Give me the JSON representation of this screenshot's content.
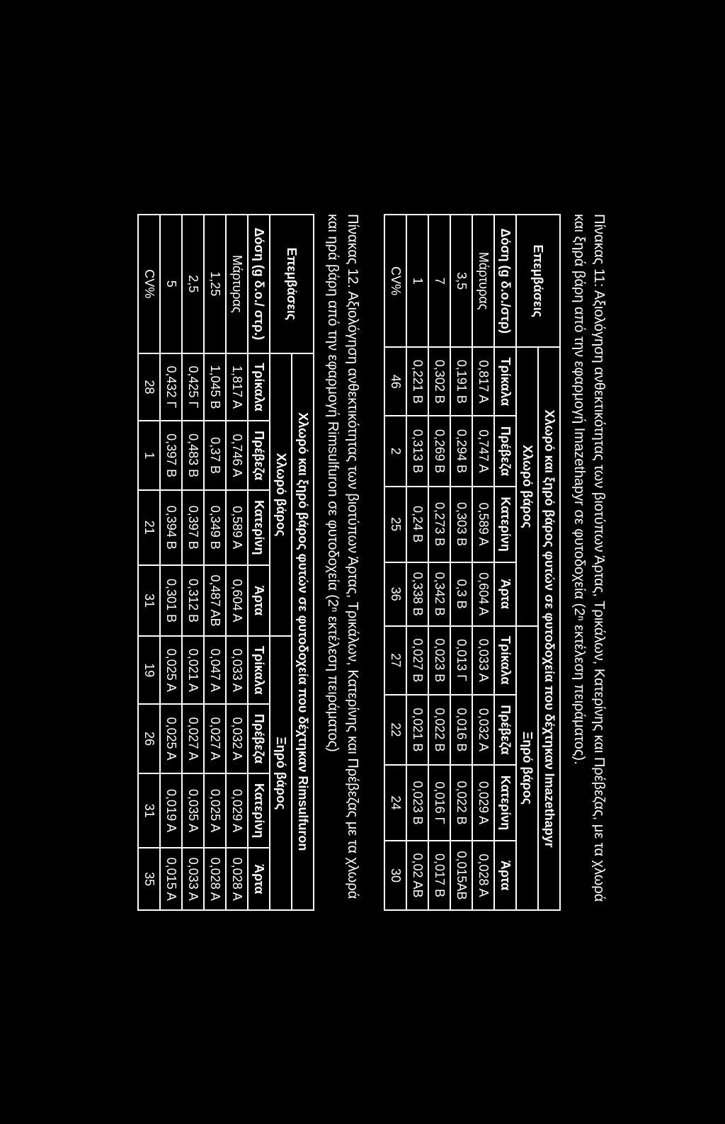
{
  "caption1": "Πίνακας 11: Αξιολόγηση ανθεκτικότητας των βιοτύπων Άρτας, Τρικάλων, Κατερίνης και Πρέβεζας, με τα χλωρά και ξηρά βάρη από την εφαρμογή Imazethapyr σε φυτοδοχεία (2ⁿ εκτέλεση πειράματος).",
  "caption2": "Πίνακας 12. Αξιολόγηση ανθεκτικότητας των βιοτύπων Άρτας, Τρικάλων, Κατερίνης και Πρέβεζας με τα χλωρά και ηρά βάρη από την εφαρμογή Rimsulfuron σε φυτοδοχεία (2ⁿ εκτέλεση πειράματος)",
  "table1": {
    "h_main": "Χλωρό και ξηρό βάρος φυτών σε φυτοδοχεία που δέχτηκαν Imazethapyr",
    "h_ep": "Επεμβάσεις",
    "h_chloro": "Χλωρό βάρος",
    "h_xiro": "Ξηρό βάρος",
    "h_dose": "Δόση (g δ.ο./στρ)",
    "cols": [
      "Τρίκαλα",
      "Πρέβεζα",
      "Κατερίνη",
      "Άρτα",
      "Τρίκαλα",
      "Πρέβεζα",
      "Κατερίνη",
      "Άρτα"
    ],
    "rows": [
      {
        "dose": "Μάρτυρας",
        "v": [
          "0,817 A",
          "0,747 A",
          "0,589 A",
          "0,604 A",
          "0,033 A",
          "0,032 A",
          "0,029 A",
          "0,028 A"
        ]
      },
      {
        "dose": "3,5",
        "v": [
          "0,191 B",
          "0,294 B",
          "0,303 B",
          "0,3 B",
          "0,013 Γ",
          "0,016 B",
          "0,022 B",
          "0,015AB"
        ]
      },
      {
        "dose": "7",
        "v": [
          "0,302 B",
          "0,269 B",
          "0,273 B",
          "0,342 B",
          "0,023 B",
          "0,022 B",
          "0,016 Γ",
          "0,017 B"
        ]
      },
      {
        "dose": "1",
        "v": [
          "0,221 B",
          "0,313 B",
          "0,24 B",
          "0,338 B",
          "0,027 B",
          "0,021 B",
          "0,023 B",
          "0,02 AB"
        ]
      }
    ],
    "cv_label": "CV%",
    "cv": [
      "46",
      "2",
      "25",
      "36",
      "27",
      "22",
      "24",
      "30"
    ]
  },
  "table2": {
    "h_main": "Χλωρό και ξηρό βάρος φυτών σε φυτοδοχεία που δέχτηκαν Rimsulfuron",
    "h_ep": "Επεμβάσεις",
    "h_chloro": "Χλωρό βάρος",
    "h_xiro": "Ξηρό βάρος",
    "h_dose": "Δόση (g δ.ο./ στρ.)",
    "cols": [
      "Τρίκαλα",
      "Πρέβεζα",
      "Κατερίνη",
      "Άρτα",
      "Τρίκαλα",
      "Πρέβεζα",
      "Κατερίνη",
      "Άρτα"
    ],
    "rows": [
      {
        "dose": "Μάρτυρας",
        "v": [
          "1,817 A",
          "0,746 A",
          "0,589 A",
          "0,604 A",
          "0,033 A",
          "0,032 A",
          "0,029 A",
          "0,028 A"
        ]
      },
      {
        "dose": "1,25",
        "v": [
          "1,045 B",
          "0,37 B",
          "0,349 B",
          "0,487 AB",
          "0,047 A",
          "0,027 A",
          "0,025 A",
          "0,028 A"
        ]
      },
      {
        "dose": "2,5",
        "v": [
          "0,425 Γ",
          "0,483 B",
          "0,397 B",
          "0,312 B",
          "0,021 A",
          "0,027 A",
          "0,035 A",
          "0,033 A"
        ]
      },
      {
        "dose": "5",
        "v": [
          "0,432 Γ",
          "0,397 B",
          "0,394 B",
          "0,301 B",
          "0,025 A",
          "0,025 A",
          "0,019 A",
          "0,015 A"
        ]
      }
    ],
    "cv_label": "CV%",
    "cv": [
      "28",
      "1",
      "21",
      "31",
      "19",
      "26",
      "31",
      "35"
    ]
  }
}
